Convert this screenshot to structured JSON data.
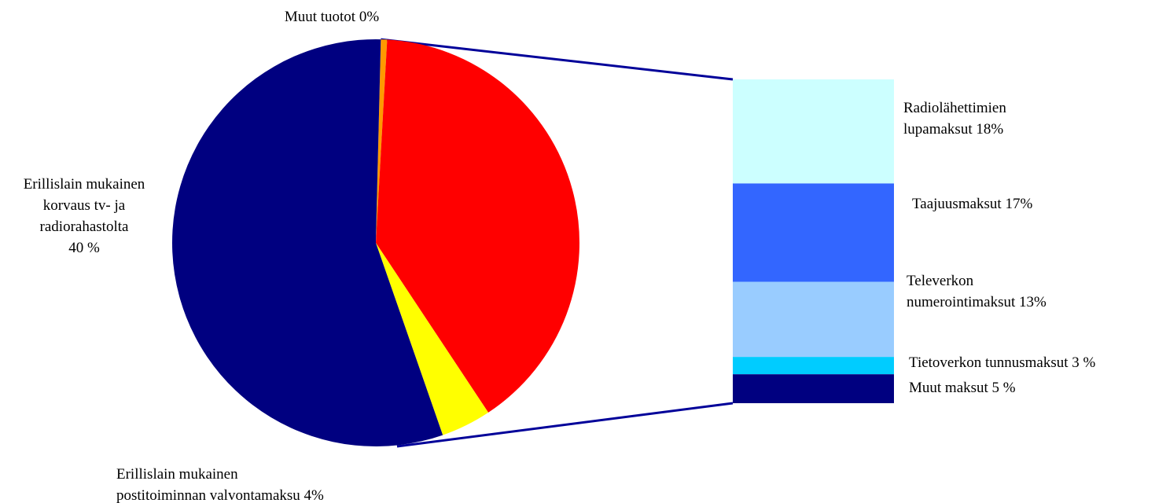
{
  "chart_data": {
    "type": "pie",
    "subtype": "pie-of-bar",
    "pie": {
      "slices": [
        {
          "label_lines": [
            "Muut tuotot 0%"
          ],
          "value": 0.5,
          "color": "#FF9900"
        },
        {
          "label_lines": [
            "Erillislain mukainen",
            "korvaus tv- ja",
            "radiorahastolta",
            "40 %"
          ],
          "value": 40,
          "color": "#FF0000"
        },
        {
          "label_lines": [
            "Erillislain mukainen",
            "postitoiminnan valvontamaksu 4%"
          ],
          "value": 4,
          "color": "#FFFF00"
        },
        {
          "label_lines": [],
          "value": 56,
          "color": "#000080"
        }
      ]
    },
    "bar": {
      "segments": [
        {
          "label_lines": [
            "Radiolähettimien",
            "lupamaksut  18%"
          ],
          "value": 18,
          "color": "#CCFFFF"
        },
        {
          "label_lines": [
            "Taajuusmaksut 17%"
          ],
          "value": 17,
          "color": "#3366FF"
        },
        {
          "label_lines": [
            "Televerkon",
            "numerointimaksut 13%"
          ],
          "value": 13,
          "color": "#99CCFF"
        },
        {
          "label_lines": [
            "Tietoverkon tunnusmaksut 3 %"
          ],
          "value": 3,
          "color": "#00CCFF"
        },
        {
          "label_lines": [
            "Muut maksut 5 %"
          ],
          "value": 5,
          "color": "#000080"
        }
      ]
    },
    "connector_color": "#000099",
    "legend": "none"
  }
}
